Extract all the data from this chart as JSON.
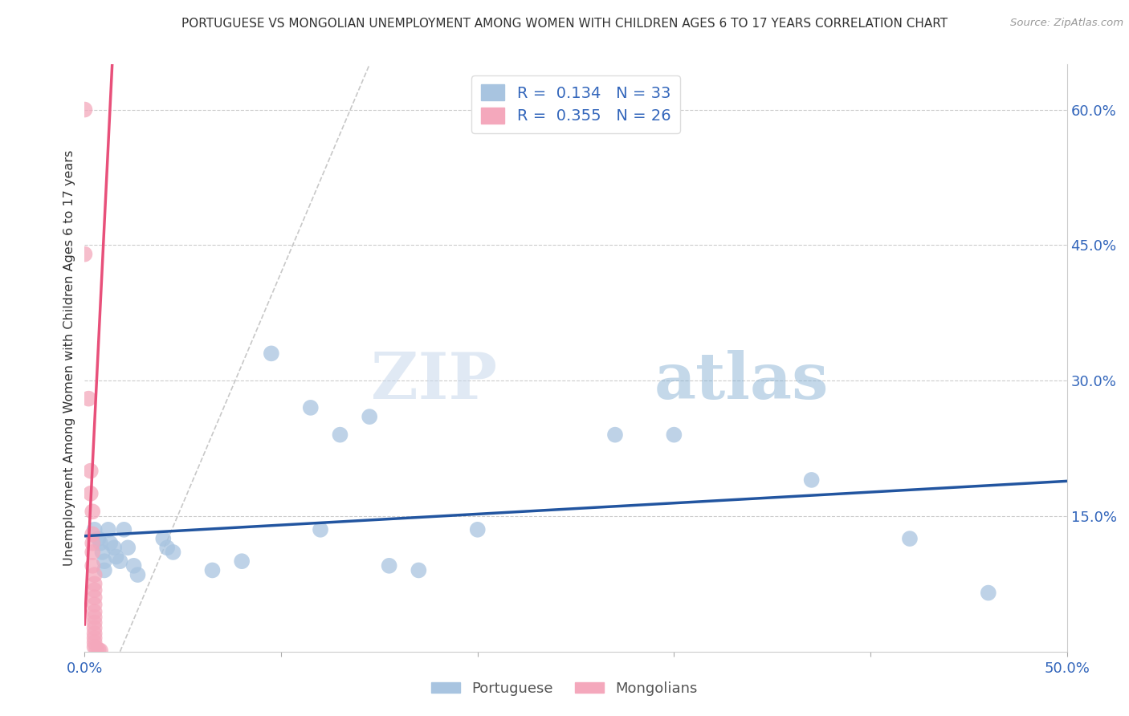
{
  "title": "PORTUGUESE VS MONGOLIAN UNEMPLOYMENT AMONG WOMEN WITH CHILDREN AGES 6 TO 17 YEARS CORRELATION CHART",
  "source": "Source: ZipAtlas.com",
  "ylabel": "Unemployment Among Women with Children Ages 6 to 17 years",
  "xlim": [
    0.0,
    0.5
  ],
  "ylim": [
    0.0,
    0.65
  ],
  "xticks": [
    0.0,
    0.1,
    0.2,
    0.3,
    0.4,
    0.5
  ],
  "xtick_labels": [
    "0.0%",
    "",
    "",
    "",
    "",
    "50.0%"
  ],
  "yticks_right": [
    0.0,
    0.15,
    0.3,
    0.45,
    0.6
  ],
  "ytick_labels_right": [
    "",
    "15.0%",
    "30.0%",
    "45.0%",
    "60.0%"
  ],
  "portuguese_R": "0.134",
  "portuguese_N": "33",
  "mongolian_R": "0.355",
  "mongolian_N": "26",
  "portuguese_color": "#a8c4e0",
  "mongolian_color": "#f4a8bc",
  "portuguese_line_color": "#2255a0",
  "mongolian_line_color": "#e8507a",
  "portuguese_scatter": [
    [
      0.005,
      0.135
    ],
    [
      0.007,
      0.125
    ],
    [
      0.008,
      0.12
    ],
    [
      0.009,
      0.11
    ],
    [
      0.01,
      0.1
    ],
    [
      0.01,
      0.09
    ],
    [
      0.012,
      0.135
    ],
    [
      0.013,
      0.12
    ],
    [
      0.015,
      0.115
    ],
    [
      0.016,
      0.105
    ],
    [
      0.018,
      0.1
    ],
    [
      0.02,
      0.135
    ],
    [
      0.022,
      0.115
    ],
    [
      0.025,
      0.095
    ],
    [
      0.027,
      0.085
    ],
    [
      0.04,
      0.125
    ],
    [
      0.042,
      0.115
    ],
    [
      0.045,
      0.11
    ],
    [
      0.065,
      0.09
    ],
    [
      0.08,
      0.1
    ],
    [
      0.095,
      0.33
    ],
    [
      0.115,
      0.27
    ],
    [
      0.12,
      0.135
    ],
    [
      0.13,
      0.24
    ],
    [
      0.145,
      0.26
    ],
    [
      0.155,
      0.095
    ],
    [
      0.17,
      0.09
    ],
    [
      0.2,
      0.135
    ],
    [
      0.27,
      0.24
    ],
    [
      0.3,
      0.24
    ],
    [
      0.37,
      0.19
    ],
    [
      0.42,
      0.125
    ],
    [
      0.46,
      0.065
    ]
  ],
  "mongolian_scatter": [
    [
      0.0,
      0.6
    ],
    [
      0.0,
      0.44
    ],
    [
      0.002,
      0.28
    ],
    [
      0.003,
      0.2
    ],
    [
      0.003,
      0.175
    ],
    [
      0.004,
      0.155
    ],
    [
      0.004,
      0.13
    ],
    [
      0.004,
      0.12
    ],
    [
      0.004,
      0.11
    ],
    [
      0.004,
      0.095
    ],
    [
      0.005,
      0.085
    ],
    [
      0.005,
      0.075
    ],
    [
      0.005,
      0.068
    ],
    [
      0.005,
      0.06
    ],
    [
      0.005,
      0.052
    ],
    [
      0.005,
      0.044
    ],
    [
      0.005,
      0.038
    ],
    [
      0.005,
      0.032
    ],
    [
      0.005,
      0.026
    ],
    [
      0.005,
      0.02
    ],
    [
      0.005,
      0.015
    ],
    [
      0.005,
      0.01
    ],
    [
      0.005,
      0.005
    ],
    [
      0.006,
      0.003
    ],
    [
      0.007,
      0.002
    ],
    [
      0.008,
      0.001
    ]
  ],
  "watermark_zip": "ZIP",
  "watermark_atlas": "atlas",
  "background_color": "#ffffff",
  "grid_color": "#cccccc"
}
